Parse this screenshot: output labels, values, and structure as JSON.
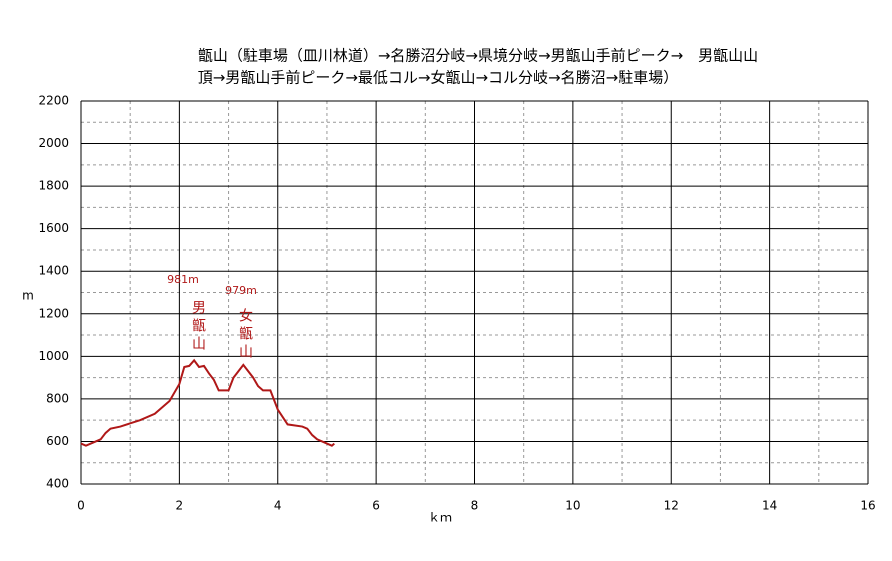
{
  "chart_data": {
    "type": "line",
    "title": [
      "甑山（駐車場（皿川林道）→名勝沼分岐→県境分岐→男甑山手前ピーク→　男甑山山",
      "頂→男甑山手前ピーク→最低コル→女甑山→コル分岐→名勝沼→駐車場）"
    ],
    "xlabel": "ｋｍ",
    "ylabel": "m",
    "x": [
      0,
      0.1,
      0.3,
      0.4,
      0.5,
      0.6,
      0.8,
      1.0,
      1.2,
      1.5,
      1.8,
      2.0,
      2.1,
      2.2,
      2.3,
      2.4,
      2.5,
      2.6,
      2.7,
      2.8,
      3.0,
      3.1,
      3.3,
      3.5,
      3.6,
      3.7,
      3.85,
      4.0,
      4.2,
      4.5,
      4.6,
      4.7,
      4.8,
      5.0,
      5.1,
      5.15
    ],
    "series": [
      {
        "name": "elevation",
        "color": "#b01818",
        "values": [
          590,
          580,
          600,
          610,
          640,
          660,
          670,
          685,
          700,
          730,
          790,
          870,
          950,
          955,
          981,
          950,
          955,
          920,
          890,
          840,
          840,
          900,
          960,
          900,
          860,
          840,
          840,
          750,
          680,
          670,
          660,
          630,
          610,
          590,
          580,
          590
        ]
      }
    ],
    "annotations": [
      "981m",
      "男甑山",
      "979m",
      "女甑山"
    ],
    "annotation_color": "#b01818",
    "xlim": [
      0,
      16
    ],
    "xticks": [
      0,
      2,
      4,
      6,
      8,
      10,
      12,
      14,
      16
    ],
    "ylim": [
      400,
      2200
    ],
    "yticks": [
      400,
      600,
      800,
      1000,
      1200,
      1400,
      1600,
      1800,
      2000,
      2200
    ],
    "grid": true
  }
}
